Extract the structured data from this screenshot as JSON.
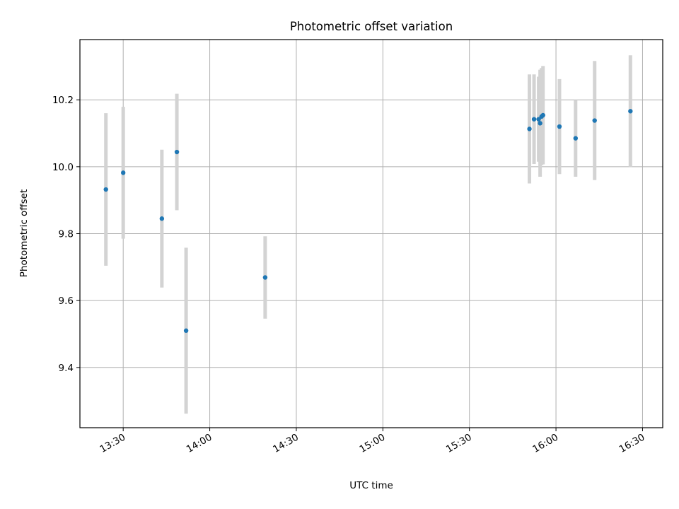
{
  "chart_data": {
    "type": "scatter",
    "title": "Photometric offset variation",
    "xlabel": "UTC time",
    "ylabel": "Photometric offset",
    "grid": true,
    "legend": "none",
    "x_unit": "minutes since 00:00 UTC",
    "xlim": [
      795,
      997
    ],
    "ylim": [
      9.22,
      10.38
    ],
    "x_ticks": [
      {
        "value": 810,
        "label": "13:30"
      },
      {
        "value": 840,
        "label": "14:00"
      },
      {
        "value": 870,
        "label": "14:30"
      },
      {
        "value": 900,
        "label": "15:00"
      },
      {
        "value": 930,
        "label": "15:30"
      },
      {
        "value": 960,
        "label": "16:00"
      },
      {
        "value": 990,
        "label": "16:30"
      }
    ],
    "y_ticks": [
      {
        "value": 9.4,
        "label": "9.4"
      },
      {
        "value": 9.6,
        "label": "9.6"
      },
      {
        "value": 9.8,
        "label": "9.8"
      },
      {
        "value": 10.0,
        "label": "10.0"
      },
      {
        "value": 10.2,
        "label": "10.2"
      }
    ],
    "series": [
      {
        "name": "offset",
        "marker_color": "#1f77b4",
        "errorbar_color": "#d3d3d3",
        "points": [
          {
            "x": 804.0,
            "y": 9.932,
            "err": 0.228
          },
          {
            "x": 810.0,
            "y": 9.982,
            "err": 0.197
          },
          {
            "x": 823.4,
            "y": 9.845,
            "err": 0.206
          },
          {
            "x": 828.6,
            "y": 10.044,
            "err": 0.174
          },
          {
            "x": 831.8,
            "y": 9.51,
            "err": 0.248
          },
          {
            "x": 859.2,
            "y": 9.669,
            "err": 0.123
          },
          {
            "x": 950.8,
            "y": 10.113,
            "err": 0.163
          },
          {
            "x": 952.4,
            "y": 10.142,
            "err": 0.134
          },
          {
            "x": 954.0,
            "y": 10.142,
            "err": 0.127
          },
          {
            "x": 954.5,
            "y": 10.13,
            "err": 0.16
          },
          {
            "x": 955.0,
            "y": 10.15,
            "err": 0.145
          },
          {
            "x": 955.5,
            "y": 10.154,
            "err": 0.147
          },
          {
            "x": 961.2,
            "y": 10.12,
            "err": 0.142
          },
          {
            "x": 966.8,
            "y": 10.085,
            "err": 0.115
          },
          {
            "x": 973.4,
            "y": 10.138,
            "err": 0.178
          },
          {
            "x": 985.8,
            "y": 10.166,
            "err": 0.167
          }
        ]
      }
    ]
  }
}
